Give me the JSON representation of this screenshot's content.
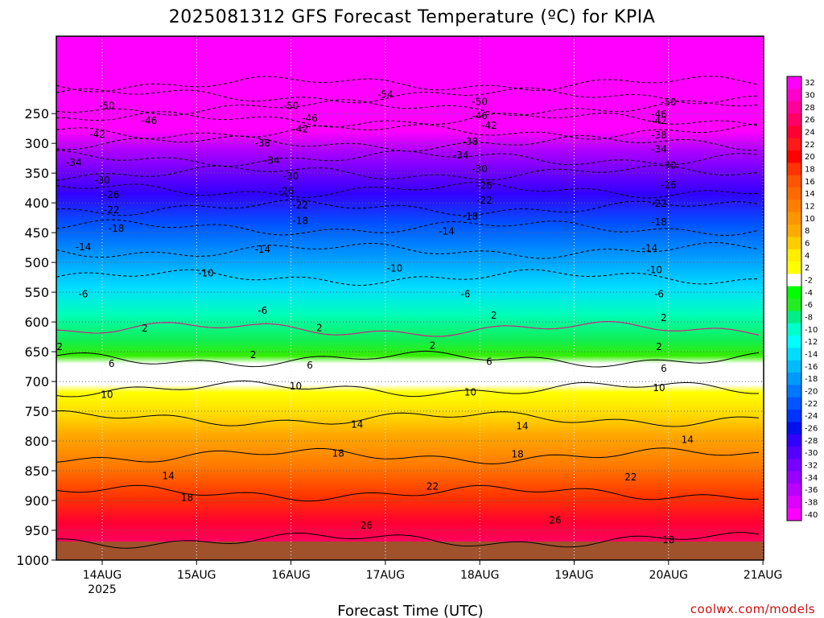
{
  "chart_data": {
    "type": "heatmap",
    "title": "2025081312 GFS Forecast Temperature (ºC) for KPIA",
    "xlabel": "Forecast Time (UTC)",
    "ylabel": "",
    "source": "coolwx.com/models",
    "x_ticks": [
      "14AUG",
      "15AUG",
      "16AUG",
      "17AUG",
      "18AUG",
      "19AUG",
      "20AUG",
      "21AUG"
    ],
    "x_year": "2025",
    "y_ticks": [
      250,
      300,
      350,
      400,
      450,
      500,
      550,
      600,
      650,
      700,
      750,
      800,
      850,
      900,
      950,
      1000
    ],
    "y_range_hpa": [
      1000,
      200
    ],
    "grid": true,
    "colorbar_ticks": [
      32,
      30,
      28,
      26,
      24,
      22,
      20,
      18,
      16,
      14,
      12,
      10,
      8,
      6,
      4,
      2,
      -2,
      -4,
      -6,
      -8,
      -10,
      -12,
      -14,
      -16,
      -18,
      -20,
      -22,
      -24,
      -26,
      -28,
      -30,
      -32,
      -34,
      -36,
      -38,
      -40
    ],
    "colorbar_colors": [
      "#ff00ff",
      "#ff00cc",
      "#ff0099",
      "#ff0066",
      "#ff0033",
      "#ff1a1a",
      "#ff0000",
      "#ff3300",
      "#ff5500",
      "#ff6a00",
      "#ff8000",
      "#ff9500",
      "#ffaa00",
      "#ffcc00",
      "#ffee00",
      "#ffff00",
      "#ffffff",
      "#00ff00",
      "#22ee22",
      "#00ee88",
      "#00ffcc",
      "#00ffff",
      "#00ddff",
      "#00bbff",
      "#0099ff",
      "#0077ff",
      "#0055ff",
      "#0033ff",
      "#0011ee",
      "#3300ff",
      "#5500ff",
      "#7700ff",
      "#9900ff",
      "#bb00ff",
      "#dd00ff",
      "#ff00ff"
    ],
    "levels": [
      {
        "hpa": 1000,
        "temp": 24
      },
      {
        "hpa": 950,
        "temp": 27
      },
      {
        "hpa": 900,
        "temp": 23
      },
      {
        "hpa": 850,
        "temp": 19
      },
      {
        "hpa": 800,
        "temp": 17
      },
      {
        "hpa": 750,
        "temp": 13
      },
      {
        "hpa": 700,
        "temp": 9
      },
      {
        "hpa": 650,
        "temp": 5
      },
      {
        "hpa": 600,
        "temp": 1
      },
      {
        "hpa": 550,
        "temp": -4
      },
      {
        "hpa": 500,
        "temp": -8
      },
      {
        "hpa": 450,
        "temp": -13
      },
      {
        "hpa": 400,
        "temp": -19
      },
      {
        "hpa": 350,
        "temp": -26
      },
      {
        "hpa": 300,
        "temp": -34
      },
      {
        "hpa": 250,
        "temp": -44
      },
      {
        "hpa": 200,
        "temp": -54
      }
    ],
    "contour_labels": [
      {
        "t": "-54",
        "day": 3.0,
        "hpa": 218
      },
      {
        "t": "-50",
        "day": 0.05,
        "hpa": 237
      },
      {
        "t": "-50",
        "day": 2.0,
        "hpa": 237
      },
      {
        "t": "-50",
        "day": 4.0,
        "hpa": 230
      },
      {
        "t": "-50",
        "day": 6.0,
        "hpa": 231
      },
      {
        "t": "-46",
        "day": 0.5,
        "hpa": 262
      },
      {
        "t": "-46",
        "day": 2.2,
        "hpa": 258
      },
      {
        "t": "-46",
        "day": 4.0,
        "hpa": 254
      },
      {
        "t": "-46",
        "day": 5.9,
        "hpa": 251
      },
      {
        "t": "-42",
        "day": -0.05,
        "hpa": 285
      },
      {
        "t": "-42",
        "day": 2.1,
        "hpa": 276
      },
      {
        "t": "-42",
        "day": 4.1,
        "hpa": 270
      },
      {
        "t": "-42",
        "day": 5.9,
        "hpa": 262
      },
      {
        "t": "-38",
        "day": 1.7,
        "hpa": 300
      },
      {
        "t": "-38",
        "day": 3.9,
        "hpa": 297
      },
      {
        "t": "-38",
        "day": 5.9,
        "hpa": 286
      },
      {
        "t": "-34",
        "day": -0.3,
        "hpa": 332
      },
      {
        "t": "-34",
        "day": 1.8,
        "hpa": 329
      },
      {
        "t": "-34",
        "day": 3.8,
        "hpa": 320
      },
      {
        "t": "-34",
        "day": 5.9,
        "hpa": 310
      },
      {
        "t": "-30",
        "day": 0.0,
        "hpa": 362
      },
      {
        "t": "-30",
        "day": 2.0,
        "hpa": 355
      },
      {
        "t": "-30",
        "day": 4.0,
        "hpa": 343
      },
      {
        "t": "-30",
        "day": 6.0,
        "hpa": 337
      },
      {
        "t": "-26",
        "day": 0.1,
        "hpa": 386
      },
      {
        "t": "-26",
        "day": 1.95,
        "hpa": 380
      },
      {
        "t": "-26",
        "day": 4.05,
        "hpa": 371
      },
      {
        "t": "-26",
        "day": 6.0,
        "hpa": 370
      },
      {
        "t": "-22",
        "day": 0.1,
        "hpa": 412
      },
      {
        "t": "-22",
        "day": 2.1,
        "hpa": 404
      },
      {
        "t": "-22",
        "day": 4.05,
        "hpa": 396
      },
      {
        "t": "-22",
        "day": 5.9,
        "hpa": 401
      },
      {
        "t": "-18",
        "day": 0.15,
        "hpa": 443
      },
      {
        "t": "-18",
        "day": 2.1,
        "hpa": 430
      },
      {
        "t": "-18",
        "day": 3.9,
        "hpa": 423
      },
      {
        "t": "-18",
        "day": 5.9,
        "hpa": 432
      },
      {
        "t": "-14",
        "day": -0.2,
        "hpa": 474
      },
      {
        "t": "-14",
        "day": 1.7,
        "hpa": 478
      },
      {
        "t": "-14",
        "day": 3.65,
        "hpa": 448
      },
      {
        "t": "-14",
        "day": 5.8,
        "hpa": 476
      },
      {
        "t": "-10",
        "day": 1.1,
        "hpa": 518
      },
      {
        "t": "-10",
        "day": 3.1,
        "hpa": 510
      },
      {
        "t": "-10",
        "day": 5.85,
        "hpa": 513
      },
      {
        "t": "-6",
        "day": -0.2,
        "hpa": 553
      },
      {
        "t": "-6",
        "day": 1.7,
        "hpa": 581
      },
      {
        "t": "-6",
        "day": 3.85,
        "hpa": 553
      },
      {
        "t": "-6",
        "day": 5.9,
        "hpa": 553
      },
      {
        "t": "2",
        "day": 0.45,
        "hpa": 611
      },
      {
        "t": "2",
        "day": 2.3,
        "hpa": 610
      },
      {
        "t": "2",
        "day": 4.15,
        "hpa": 589
      },
      {
        "t": "2",
        "day": 5.95,
        "hpa": 593
      },
      {
        "t": "2",
        "day": -0.45,
        "hpa": 642
      },
      {
        "t": "2",
        "day": 1.6,
        "hpa": 655
      },
      {
        "t": "2",
        "day": 3.5,
        "hpa": 640
      },
      {
        "t": "2",
        "day": 5.9,
        "hpa": 642
      },
      {
        "t": "6",
        "day": 0.1,
        "hpa": 670
      },
      {
        "t": "6",
        "day": 2.2,
        "hpa": 673
      },
      {
        "t": "6",
        "day": 4.1,
        "hpa": 667
      },
      {
        "t": "6",
        "day": 5.95,
        "hpa": 678
      },
      {
        "t": "10",
        "day": 0.05,
        "hpa": 722
      },
      {
        "t": "10",
        "day": 2.05,
        "hpa": 708
      },
      {
        "t": "10",
        "day": 3.9,
        "hpa": 718
      },
      {
        "t": "10",
        "day": 5.9,
        "hpa": 711
      },
      {
        "t": "14",
        "day": 2.7,
        "hpa": 772
      },
      {
        "t": "14",
        "day": 4.45,
        "hpa": 775
      },
      {
        "t": "14",
        "day": 6.2,
        "hpa": 798
      },
      {
        "t": "14",
        "day": 0.7,
        "hpa": 859
      },
      {
        "t": "18",
        "day": 2.5,
        "hpa": 821
      },
      {
        "t": "18",
        "day": 4.4,
        "hpa": 822
      },
      {
        "t": "18",
        "day": 0.9,
        "hpa": 895
      },
      {
        "t": "18",
        "day": 6.0,
        "hpa": 966
      },
      {
        "t": "22",
        "day": 3.5,
        "hpa": 876
      },
      {
        "t": "22",
        "day": 5.6,
        "hpa": 861
      },
      {
        "t": "26",
        "day": 2.8,
        "hpa": 942
      },
      {
        "t": "26",
        "day": 4.8,
        "hpa": 933
      }
    ]
  }
}
